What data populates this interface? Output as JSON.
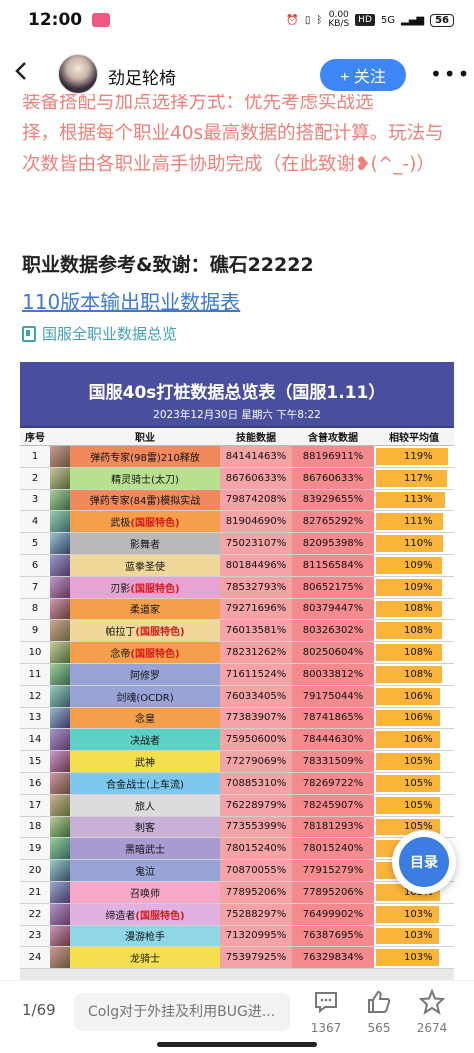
{
  "status_bar": {
    "time": "12:00",
    "net_speed_value": "0.00",
    "net_speed_unit": "KB/S",
    "hd_label": "HD",
    "signal": "5G",
    "battery": "56"
  },
  "header": {
    "author": "劲足轮椅",
    "follow_label": "+ 关注"
  },
  "article": {
    "partial_line": "装备搭配与加点选择方式：优先考虑实战选",
    "paragraph": "择，根据每个职业40s最高数据的搭配计算。玩法与次数皆由各职业高手协助完成（在此致谢❥(^_-)）",
    "section_title": "职业数据参考&致谢：礁石22222",
    "link_text": "110版本输出职业数据表",
    "nav_chip": "国服全职业数据总览"
  },
  "table": {
    "title": "国服40s打桩数据总览表（国服1.11）",
    "subtitle": "2023年12月30日 星期六 下午8:22",
    "headers": [
      "序号",
      "职业",
      "技能数据",
      "含普攻数据",
      "相较平均值"
    ],
    "rows": [
      {
        "no": "1",
        "job": "弹药专家(98雷)210释放",
        "skill": "84141463%",
        "total": "88196911%",
        "avg": "119%",
        "avg_value": 119,
        "color": "#f08a5d",
        "feature": ""
      },
      {
        "no": "2",
        "job": "精灵骑士(太刀)",
        "skill": "86760633%",
        "total": "86760633%",
        "avg": "117%",
        "avg_value": 117,
        "color": "#b7e08f",
        "feature": ""
      },
      {
        "no": "3",
        "job": "弹药专家(84雷)模拟实战",
        "skill": "79874208%",
        "total": "83929655%",
        "avg": "113%",
        "avg_value": 113,
        "color": "#f08a5d",
        "feature": ""
      },
      {
        "no": "4",
        "job": "武极",
        "skill": "81904690%",
        "total": "82765292%",
        "avg": "111%",
        "avg_value": 111,
        "color": "#f59f4b",
        "feature": "(国服特色)"
      },
      {
        "no": "5",
        "job": "影舞者",
        "skill": "75023107%",
        "total": "82095398%",
        "avg": "110%",
        "avg_value": 110,
        "color": "#b9b9b9",
        "feature": ""
      },
      {
        "no": "6",
        "job": "蓝拳圣使",
        "skill": "80184496%",
        "total": "81156584%",
        "avg": "109%",
        "avg_value": 109,
        "color": "#efd89a",
        "feature": ""
      },
      {
        "no": "7",
        "job": "刃影",
        "skill": "78532793%",
        "total": "80652175%",
        "avg": "109%",
        "avg_value": 109,
        "color": "#e8a3d6",
        "feature": "(国服特色)"
      },
      {
        "no": "8",
        "job": "柔道家",
        "skill": "79271696%",
        "total": "80379447%",
        "avg": "108%",
        "avg_value": 108,
        "color": "#f59f4b",
        "feature": ""
      },
      {
        "no": "9",
        "job": "帕拉丁",
        "skill": "76013581%",
        "total": "80326302%",
        "avg": "108%",
        "avg_value": 108,
        "color": "#efd89a",
        "feature": "(国服特色)"
      },
      {
        "no": "10",
        "job": "念帝",
        "skill": "78231262%",
        "total": "80250604%",
        "avg": "108%",
        "avg_value": 108,
        "color": "#f59f4b",
        "feature": "(国服特色)"
      },
      {
        "no": "11",
        "job": "阿修罗",
        "skill": "71611524%",
        "total": "80033812%",
        "avg": "108%",
        "avg_value": 108,
        "color": "#9aa3d8",
        "feature": ""
      },
      {
        "no": "12",
        "job": "剑魂(OCDR)",
        "skill": "76033405%",
        "total": "79175044%",
        "avg": "106%",
        "avg_value": 106,
        "color": "#9aa3d8",
        "feature": ""
      },
      {
        "no": "13",
        "job": "念皇",
        "skill": "77383907%",
        "total": "78741865%",
        "avg": "106%",
        "avg_value": 106,
        "color": "#f59f4b",
        "feature": ""
      },
      {
        "no": "14",
        "job": "决战者",
        "skill": "75950600%",
        "total": "78444630%",
        "avg": "106%",
        "avg_value": 106,
        "color": "#5ed1c6",
        "feature": ""
      },
      {
        "no": "15",
        "job": "武神",
        "skill": "77279069%",
        "total": "78331509%",
        "avg": "105%",
        "avg_value": 105,
        "color": "#f4e04d",
        "feature": ""
      },
      {
        "no": "16",
        "job": "合金战士(上车流)",
        "skill": "70885310%",
        "total": "78269722%",
        "avg": "105%",
        "avg_value": 105,
        "color": "#7ec8f0",
        "feature": ""
      },
      {
        "no": "17",
        "job": "旅人",
        "skill": "76228979%",
        "total": "78245907%",
        "avg": "105%",
        "avg_value": 105,
        "color": "#dcdcdc",
        "feature": ""
      },
      {
        "no": "18",
        "job": "刺客",
        "skill": "77355399%",
        "total": "78181293%",
        "avg": "105%",
        "avg_value": 105,
        "color": "#c8b0d8",
        "feature": ""
      },
      {
        "no": "19",
        "job": "黑暗武士",
        "skill": "78015240%",
        "total": "78015240%",
        "avg": "105%",
        "avg_value": 105,
        "color": "#a99bd1",
        "feature": ""
      },
      {
        "no": "20",
        "job": "鬼泣",
        "skill": "70870055%",
        "total": "77915279%",
        "avg": "105%",
        "avg_value": 105,
        "color": "#9aa3d8",
        "feature": ""
      },
      {
        "no": "21",
        "job": "召唤师",
        "skill": "77895206%",
        "total": "77895206%",
        "avg": "105%",
        "avg_value": 105,
        "color": "#f5a8c8",
        "feature": ""
      },
      {
        "no": "22",
        "job": "缔造者",
        "skill": "75288297%",
        "total": "76499902%",
        "avg": "103%",
        "avg_value": 103,
        "color": "#e1b1e1",
        "feature": "(国服特色)"
      },
      {
        "no": "23",
        "job": "漫游枪手",
        "skill": "71320995%",
        "total": "76387695%",
        "avg": "103%",
        "avg_value": 103,
        "color": "#8fd6e6",
        "feature": ""
      },
      {
        "no": "24",
        "job": "龙骑士",
        "skill": "75397925%",
        "total": "76329834%",
        "avg": "103%",
        "avg_value": 103,
        "color": "#f4e04d",
        "feature": ""
      }
    ]
  },
  "catalog_button": "目录",
  "bottom_bar": {
    "page_count": "1/69",
    "comment_placeholder": "Colg对于外挂及利用BUG进...",
    "comments": "1367",
    "likes": "565",
    "favorites": "2674"
  },
  "colors": {
    "accent": "#3d86f5",
    "article_red": "#f0807a",
    "link": "#3c7ad6",
    "banner": "#4a4e9e",
    "avg_bar": "#fbb43a"
  }
}
